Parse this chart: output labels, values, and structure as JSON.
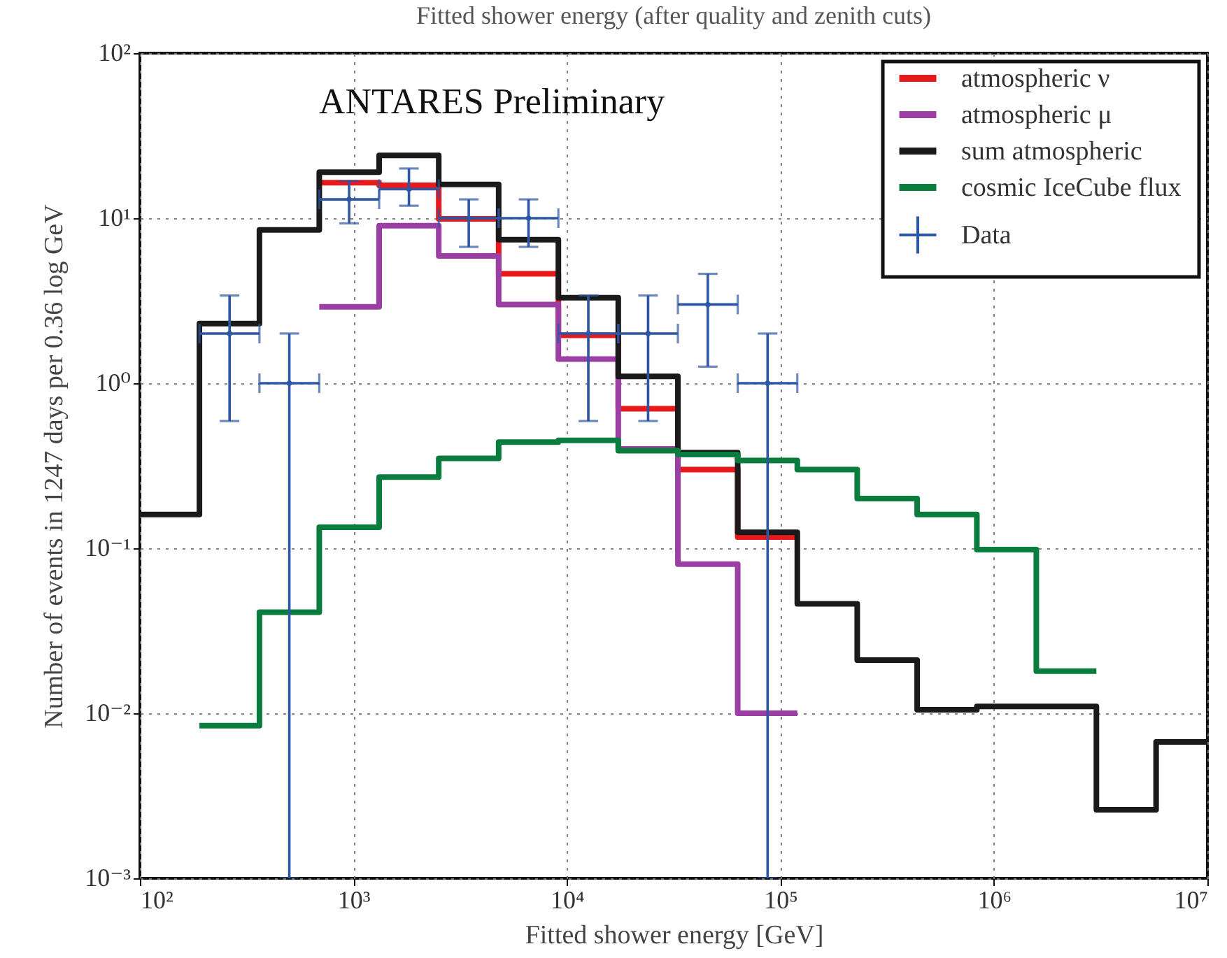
{
  "chart_data": {
    "type": "histogram",
    "title": "Fitted shower energy (after quality and zenith cuts)",
    "xlabel": "Fitted shower energy [GeV]",
    "ylabel": "Number of events in 1247 days per 0.36 log GeV",
    "annotations": [
      "ANTARES Preliminary"
    ],
    "log": "xy",
    "grid": true,
    "legend": "top right",
    "xlim": [
      100,
      10000000
    ],
    "ylim": [
      0.001,
      100
    ],
    "xticks": [
      {
        "value": 100,
        "label": "10²"
      },
      {
        "value": 1000,
        "label": "10³"
      },
      {
        "value": 10000,
        "label": "10⁴"
      },
      {
        "value": 100000,
        "label": "10⁵"
      },
      {
        "value": 1000000,
        "label": "10⁶"
      },
      {
        "value": 10000000,
        "label": "10⁷"
      }
    ],
    "yticks": [
      {
        "value": 0.001,
        "label": "10⁻³"
      },
      {
        "value": 0.01,
        "label": "10⁻²"
      },
      {
        "value": 0.1,
        "label": "10⁻¹"
      },
      {
        "value": 1,
        "label": "10⁰"
      },
      {
        "value": 10,
        "label": "10¹"
      },
      {
        "value": 100,
        "label": "10²"
      }
    ],
    "bins": [
      100,
      190,
      363,
      692,
      1320,
      2510,
      4790,
      9120,
      17400,
      33100,
      63100,
      120000,
      229000,
      437000,
      832000,
      1580000,
      3020000,
      5750000,
      10000000
    ],
    "series": [
      {
        "name": "atmospheric ν",
        "color": "#e8191c",
        "bins": [
          692,
          1320,
          2510,
          4790,
          9120,
          17400,
          33100,
          63100,
          120000
        ],
        "values": [
          16.4,
          15.8,
          9.9,
          4.6,
          1.95,
          0.7,
          0.3,
          0.117
        ]
      },
      {
        "name": "atmospheric μ",
        "color": "#9b3fa4",
        "bins": [
          692,
          1320,
          2510,
          4790,
          9120,
          17400,
          33100,
          63100,
          120000
        ],
        "values": [
          2.9,
          9.0,
          5.9,
          3.0,
          1.4,
          0.4,
          0.08,
          0.01
        ]
      },
      {
        "name": "sum atmospheric",
        "color": "#1a1a1a",
        "values": [
          0.16,
          2.3,
          8.5,
          19,
          24,
          16,
          7.4,
          3.3,
          1.1,
          0.38,
          0.125,
          0.046,
          0.021,
          0.0105,
          0.011,
          0.011,
          0.0026,
          0.0067
        ]
      },
      {
        "name": "cosmic IceCube flux",
        "color": "#0a7d3e",
        "bins": [
          190,
          363,
          692,
          1320,
          2510,
          4790,
          9120,
          17400,
          33100,
          63100,
          120000,
          229000,
          437000,
          832000,
          1580000,
          3020000
        ],
        "values": [
          0.0084,
          0.041,
          0.134,
          0.27,
          0.35,
          0.44,
          0.45,
          0.39,
          0.37,
          0.34,
          0.3,
          0.2,
          0.16,
          0.098,
          0.018
        ]
      },
      {
        "name": "Data",
        "type": "scatter",
        "color": "#2d56a4",
        "x": [
          263,
          501,
          955,
          1820,
          3470,
          6610,
          12600,
          24000,
          45700,
          87100
        ],
        "values": [
          2,
          1,
          13,
          15,
          10,
          10,
          2,
          2,
          3,
          1
        ],
        "errors": [
          [
            0.59,
            3.4
          ],
          [
            0.001,
            2
          ],
          [
            9.3,
            16.8
          ],
          [
            11.9,
            20
          ],
          [
            6.7,
            13
          ],
          [
            6.7,
            13
          ],
          [
            0.59,
            3.4
          ],
          [
            0.59,
            3.4
          ],
          [
            1.26,
            4.6
          ],
          [
            0.001,
            2
          ]
        ],
        "xerrors": [
          [
            190,
            363
          ],
          [
            363,
            692
          ],
          [
            692,
            1320
          ],
          [
            1320,
            2510
          ],
          [
            2510,
            4790
          ],
          [
            4790,
            9120
          ],
          [
            9120,
            17400
          ],
          [
            17400,
            33100
          ],
          [
            33100,
            63100
          ],
          [
            63100,
            120000
          ]
        ]
      }
    ]
  }
}
